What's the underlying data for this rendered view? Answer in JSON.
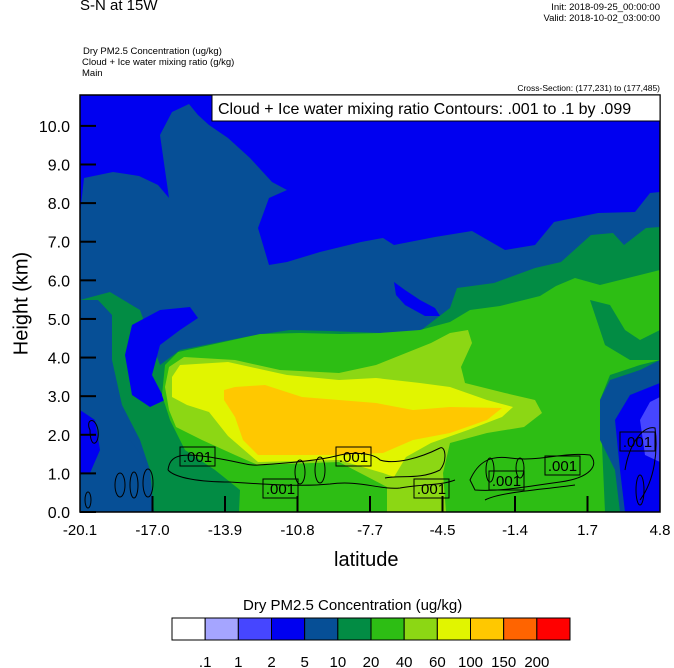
{
  "header": {
    "title": "S-N at 15W",
    "init": "Init: 2018-09-25_00:00:00",
    "valid": "Valid: 2018-10-02_03:00:00",
    "subtitles": [
      "Dry PM2.5 Concentration   (ug/kg)",
      "Cloud + Ice water mixing ratio   (g/kg)",
      "Main"
    ],
    "cross_section": "Cross-Section: (177,231) to (177,485)"
  },
  "chart_data": {
    "type": "heatmap",
    "subtype": "filled contour cross-section with line contour overlay",
    "xlabel": "latitude",
    "ylabel": "Height (km)",
    "xlim": [
      -20.1,
      4.8
    ],
    "ylim": [
      0.0,
      10.8
    ],
    "x_ticks": [
      "-20.1",
      "-17.0",
      "-13.9",
      "-10.8",
      "-7.7",
      "-4.5",
      "-1.4",
      "1.7",
      "4.8"
    ],
    "y_ticks": [
      "0.0",
      "1.0",
      "2.0",
      "3.0",
      "4.0",
      "5.0",
      "6.0",
      "7.0",
      "8.0",
      "9.0",
      "10.0"
    ],
    "overlay_box": "Cloud + Ice water mixing ratio Contours: .001 to .1 by .099",
    "contour_labels": [
      ".001",
      ".001",
      ".001",
      ".001",
      ".001",
      ".001",
      ".001"
    ],
    "colorbar": {
      "title": "Dry PM2.5 Concentration  (ug/kg)",
      "levels": [
        ".1",
        "1",
        "2",
        "5",
        "10",
        "20",
        "40",
        "60",
        "100",
        "150",
        "200"
      ],
      "colors": [
        "#ffffff",
        "#a5a5ff",
        "#4646ff",
        "#0000f0",
        "#064f96",
        "#028c44",
        "#2dbe14",
        "#8cd714",
        "#e1f500",
        "#ffc800",
        "#ff6400",
        "#ff0000"
      ],
      "placement": "bottom"
    },
    "grid": false
  }
}
